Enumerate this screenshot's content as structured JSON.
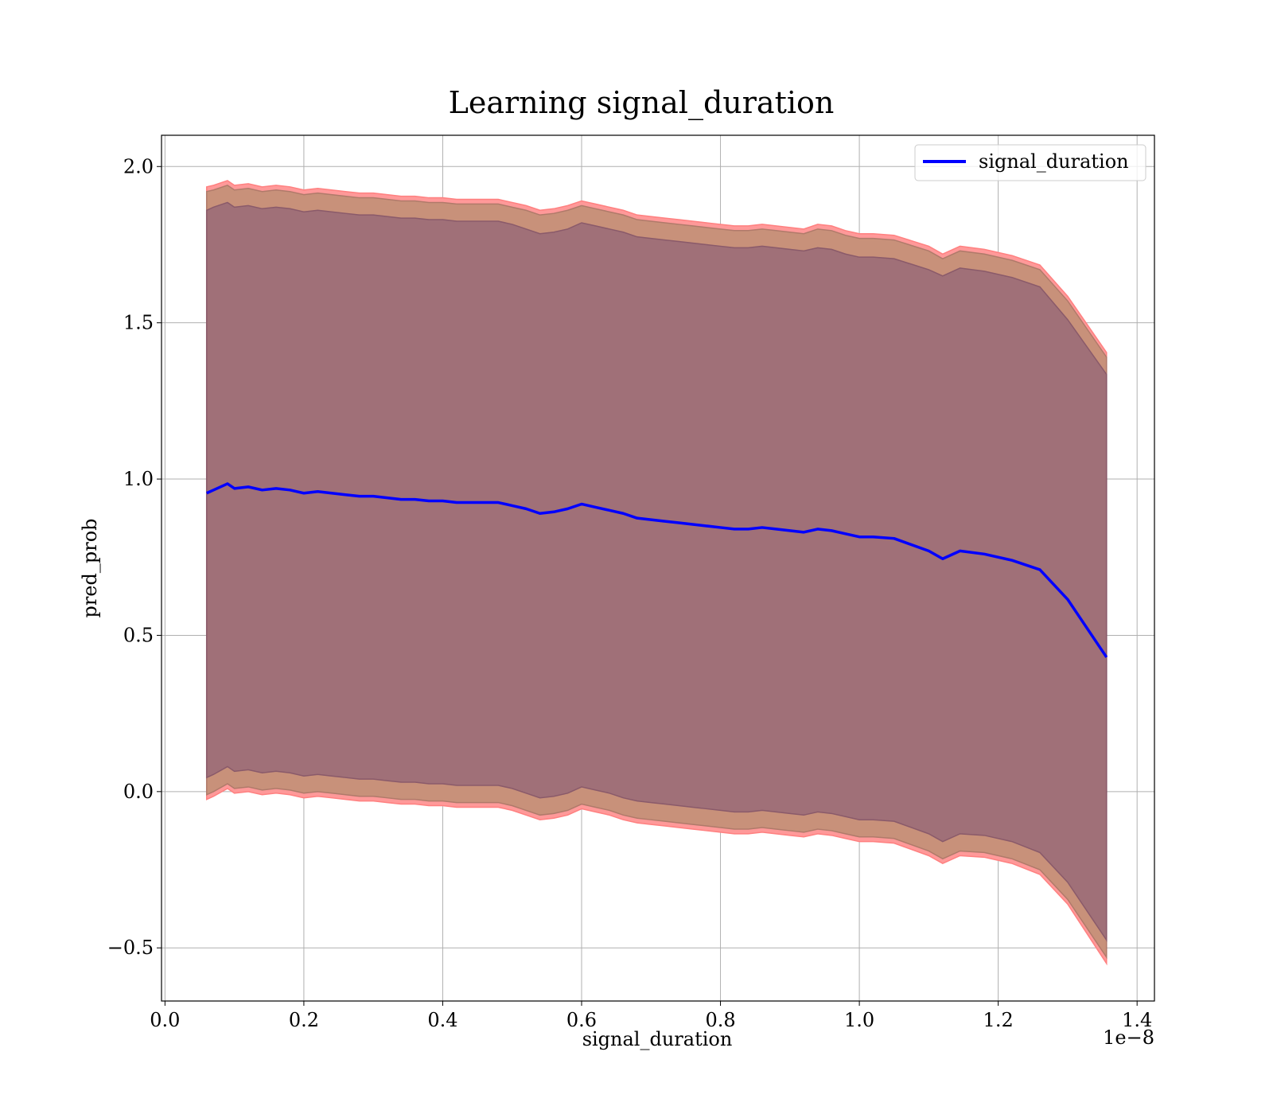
{
  "chart_data": {
    "type": "line",
    "title": "Learning signal_duration",
    "xlabel": "signal_duration",
    "ylabel": "pred_prob",
    "x_offset_label": "1e−8",
    "xlim": [
      -0.005,
      1.425
    ],
    "ylim": [
      -0.67,
      2.1
    ],
    "x_ticks": [
      0.0,
      0.2,
      0.4,
      0.6,
      0.8,
      1.0,
      1.2,
      1.4
    ],
    "x_tick_labels": [
      "0.0",
      "0.2",
      "0.4",
      "0.6",
      "0.8",
      "1.0",
      "1.2",
      "1.4"
    ],
    "y_ticks": [
      -0.5,
      0.0,
      0.5,
      1.0,
      1.5,
      2.0
    ],
    "y_tick_labels": [
      "−0.5",
      "0.0",
      "0.5",
      "1.0",
      "1.5",
      "2.0"
    ],
    "grid": true,
    "legend_position": "upper right",
    "colors": {
      "line": "#0000ff",
      "band_outer": "#ff9999",
      "band_middle": "#c8917a",
      "band_inner": "#a07078"
    },
    "x": [
      0.06,
      0.07,
      0.09,
      0.1,
      0.12,
      0.14,
      0.16,
      0.18,
      0.2,
      0.22,
      0.24,
      0.26,
      0.28,
      0.3,
      0.32,
      0.34,
      0.36,
      0.38,
      0.4,
      0.42,
      0.44,
      0.46,
      0.48,
      0.5,
      0.52,
      0.54,
      0.56,
      0.58,
      0.6,
      0.62,
      0.64,
      0.66,
      0.68,
      0.7,
      0.72,
      0.74,
      0.76,
      0.78,
      0.8,
      0.82,
      0.84,
      0.86,
      0.88,
      0.9,
      0.92,
      0.94,
      0.96,
      0.98,
      1.0,
      1.02,
      1.05,
      1.1,
      1.12,
      1.145,
      1.18,
      1.22,
      1.26,
      1.3,
      1.356
    ],
    "series": [
      {
        "name": "signal_duration",
        "values": [
          0.955,
          0.965,
          0.985,
          0.97,
          0.975,
          0.965,
          0.97,
          0.965,
          0.955,
          0.96,
          0.955,
          0.95,
          0.945,
          0.945,
          0.94,
          0.935,
          0.935,
          0.93,
          0.93,
          0.925,
          0.925,
          0.925,
          0.925,
          0.915,
          0.905,
          0.89,
          0.895,
          0.905,
          0.92,
          0.91,
          0.9,
          0.89,
          0.875,
          0.87,
          0.865,
          0.86,
          0.855,
          0.85,
          0.845,
          0.84,
          0.84,
          0.845,
          0.84,
          0.835,
          0.83,
          0.84,
          0.835,
          0.825,
          0.815,
          0.815,
          0.81,
          0.77,
          0.745,
          0.77,
          0.76,
          0.74,
          0.71,
          0.615,
          0.43
        ]
      }
    ],
    "bands": [
      {
        "upper": [
          1.935,
          1.94,
          1.955,
          1.94,
          1.945,
          1.935,
          1.94,
          1.935,
          1.925,
          1.93,
          1.925,
          1.92,
          1.915,
          1.915,
          1.91,
          1.905,
          1.905,
          1.9,
          1.9,
          1.895,
          1.895,
          1.895,
          1.895,
          1.885,
          1.875,
          1.86,
          1.865,
          1.875,
          1.89,
          1.88,
          1.87,
          1.86,
          1.845,
          1.84,
          1.835,
          1.83,
          1.825,
          1.82,
          1.815,
          1.81,
          1.81,
          1.815,
          1.81,
          1.805,
          1.8,
          1.815,
          1.81,
          1.795,
          1.785,
          1.785,
          1.78,
          1.745,
          1.72,
          1.745,
          1.735,
          1.715,
          1.685,
          1.585,
          1.405
        ],
        "lower": [
          -0.025,
          -0.015,
          0.01,
          -0.005,
          0.0,
          -0.01,
          -0.005,
          -0.01,
          -0.02,
          -0.015,
          -0.02,
          -0.025,
          -0.03,
          -0.03,
          -0.035,
          -0.04,
          -0.04,
          -0.045,
          -0.045,
          -0.05,
          -0.05,
          -0.05,
          -0.05,
          -0.06,
          -0.075,
          -0.09,
          -0.085,
          -0.075,
          -0.055,
          -0.065,
          -0.075,
          -0.09,
          -0.1,
          -0.105,
          -0.11,
          -0.115,
          -0.12,
          -0.125,
          -0.13,
          -0.135,
          -0.135,
          -0.13,
          -0.135,
          -0.14,
          -0.145,
          -0.135,
          -0.14,
          -0.15,
          -0.16,
          -0.16,
          -0.165,
          -0.205,
          -0.23,
          -0.205,
          -0.21,
          -0.23,
          -0.265,
          -0.36,
          -0.55
        ]
      },
      {
        "upper": [
          1.92,
          1.925,
          1.94,
          1.925,
          1.93,
          1.92,
          1.925,
          1.92,
          1.91,
          1.915,
          1.91,
          1.905,
          1.9,
          1.9,
          1.895,
          1.89,
          1.89,
          1.885,
          1.885,
          1.88,
          1.88,
          1.88,
          1.88,
          1.87,
          1.86,
          1.845,
          1.85,
          1.86,
          1.875,
          1.865,
          1.855,
          1.845,
          1.83,
          1.825,
          1.82,
          1.815,
          1.81,
          1.805,
          1.8,
          1.795,
          1.795,
          1.8,
          1.795,
          1.79,
          1.785,
          1.8,
          1.795,
          1.78,
          1.77,
          1.77,
          1.765,
          1.73,
          1.705,
          1.73,
          1.72,
          1.7,
          1.67,
          1.57,
          1.39
        ],
        "lower": [
          -0.01,
          0.0,
          0.025,
          0.01,
          0.015,
          0.005,
          0.01,
          0.005,
          -0.005,
          0.0,
          -0.005,
          -0.01,
          -0.015,
          -0.015,
          -0.02,
          -0.025,
          -0.025,
          -0.03,
          -0.03,
          -0.035,
          -0.035,
          -0.035,
          -0.035,
          -0.045,
          -0.06,
          -0.075,
          -0.07,
          -0.06,
          -0.04,
          -0.05,
          -0.06,
          -0.075,
          -0.085,
          -0.09,
          -0.095,
          -0.1,
          -0.105,
          -0.11,
          -0.115,
          -0.12,
          -0.12,
          -0.115,
          -0.12,
          -0.125,
          -0.13,
          -0.12,
          -0.125,
          -0.135,
          -0.145,
          -0.145,
          -0.15,
          -0.19,
          -0.215,
          -0.19,
          -0.195,
          -0.215,
          -0.25,
          -0.345,
          -0.53
        ]
      },
      {
        "upper": [
          1.86,
          1.87,
          1.885,
          1.87,
          1.875,
          1.865,
          1.87,
          1.865,
          1.855,
          1.86,
          1.855,
          1.85,
          1.845,
          1.845,
          1.84,
          1.835,
          1.835,
          1.83,
          1.83,
          1.825,
          1.825,
          1.825,
          1.825,
          1.815,
          1.8,
          1.785,
          1.79,
          1.8,
          1.82,
          1.81,
          1.8,
          1.79,
          1.775,
          1.77,
          1.765,
          1.76,
          1.755,
          1.75,
          1.745,
          1.74,
          1.74,
          1.745,
          1.74,
          1.735,
          1.73,
          1.74,
          1.735,
          1.72,
          1.71,
          1.71,
          1.705,
          1.67,
          1.65,
          1.675,
          1.665,
          1.645,
          1.615,
          1.51,
          1.335
        ],
        "lower": [
          0.045,
          0.055,
          0.08,
          0.065,
          0.07,
          0.06,
          0.065,
          0.06,
          0.05,
          0.055,
          0.05,
          0.045,
          0.04,
          0.04,
          0.035,
          0.03,
          0.03,
          0.025,
          0.025,
          0.02,
          0.02,
          0.02,
          0.02,
          0.01,
          -0.005,
          -0.02,
          -0.015,
          -0.005,
          0.015,
          0.005,
          -0.005,
          -0.02,
          -0.03,
          -0.035,
          -0.04,
          -0.045,
          -0.05,
          -0.055,
          -0.06,
          -0.065,
          -0.065,
          -0.06,
          -0.065,
          -0.07,
          -0.075,
          -0.065,
          -0.07,
          -0.08,
          -0.09,
          -0.09,
          -0.095,
          -0.135,
          -0.16,
          -0.135,
          -0.14,
          -0.16,
          -0.195,
          -0.29,
          -0.475
        ]
      }
    ]
  }
}
